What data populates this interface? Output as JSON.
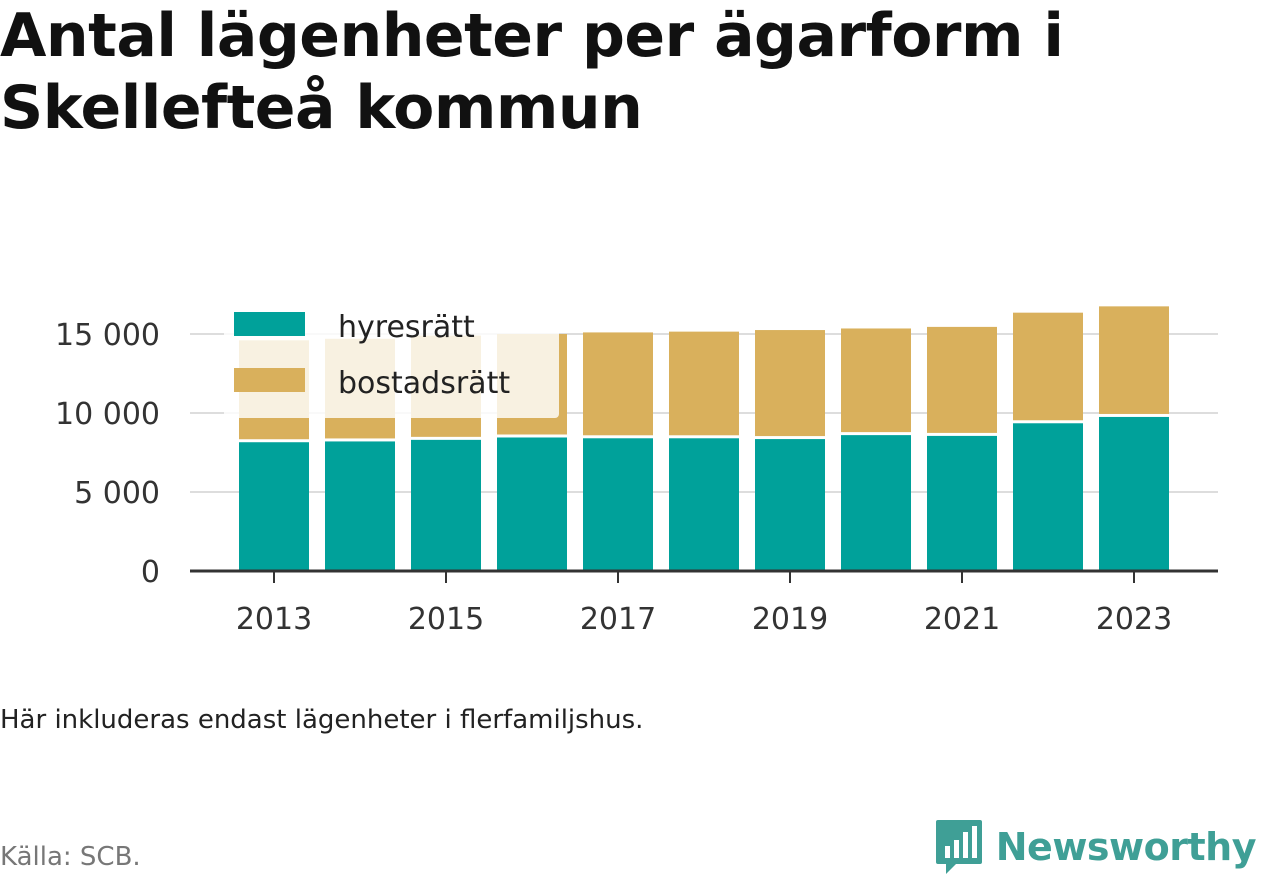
{
  "title": "Antal lägenheter per ägarform i Skellefteå kommun",
  "note": "Här inkluderas endast lägenheter i flerfamiljshus.",
  "source": "Källa: SCB.",
  "brand": "Newsworthy",
  "colors": {
    "hyresratt": "#00a19a",
    "bostadsratt": "#d9b05c",
    "grid": "#dddddd",
    "axis": "#333333",
    "brand": "#3f9f96"
  },
  "chart_data": {
    "type": "bar",
    "stacked": true,
    "categories": [
      "2013",
      "2014",
      "2015",
      "2016",
      "2017",
      "2018",
      "2019",
      "2020",
      "2021",
      "2022",
      "2023"
    ],
    "x_tick_labels": [
      "2013",
      "2015",
      "2017",
      "2019",
      "2021",
      "2023"
    ],
    "series": [
      {
        "name": "hyresrätt",
        "values": [
          8150,
          8200,
          8300,
          8450,
          8400,
          8400,
          8350,
          8600,
          8550,
          9350,
          9750
        ]
      },
      {
        "name": "bostadsrätt",
        "values": [
          6450,
          6500,
          6600,
          6550,
          6700,
          6750,
          6900,
          6750,
          6900,
          7000,
          7000
        ]
      }
    ],
    "ylim": [
      0,
      17000
    ],
    "y_ticks": [
      0,
      5000,
      10000,
      15000
    ],
    "y_tick_labels": [
      "0",
      "5 000",
      "10 000",
      "15 000"
    ],
    "grid": true,
    "legend": "top-left"
  }
}
